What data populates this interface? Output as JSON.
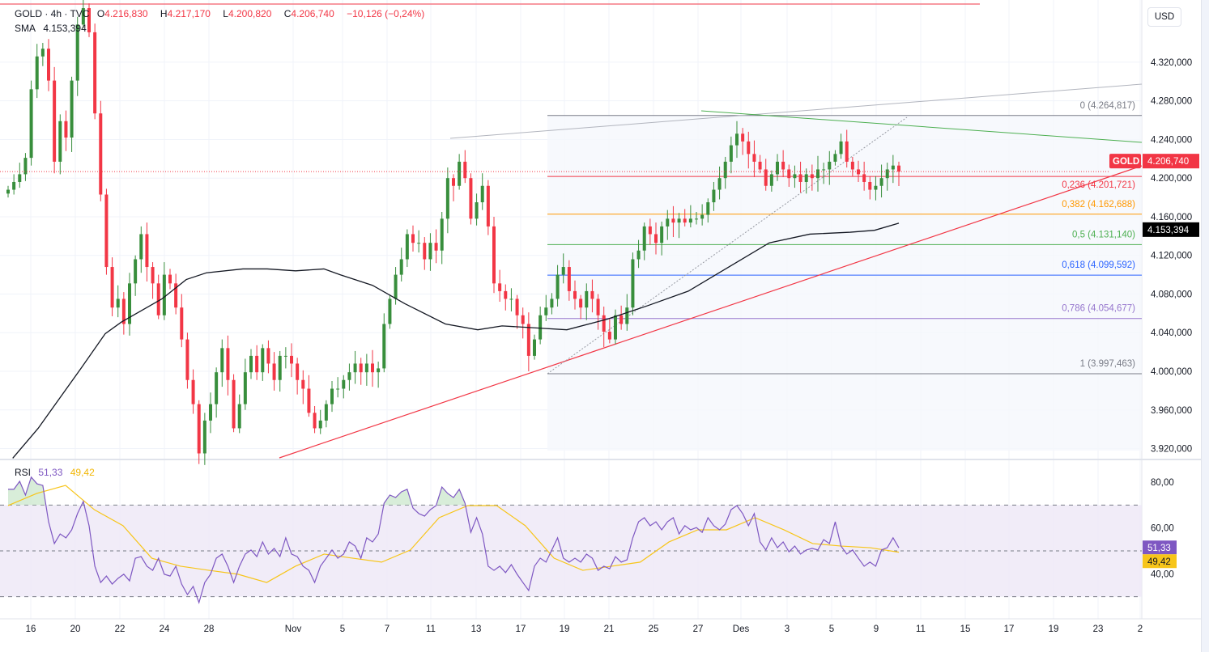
{
  "header": {
    "symbol": "GOLD · 4h · TVC",
    "open_label": "O",
    "open": "4.216,830",
    "high_label": "H",
    "high": "4.217,170",
    "low_label": "L",
    "low": "4.200,820",
    "close_label": "C",
    "close": "4.206,740",
    "change": "−10,126 (−0,24%)",
    "sma_label": "SMA",
    "sma_value": "4.153,394",
    "currency": "USD"
  },
  "colors": {
    "up": "#388e3c",
    "down": "#f23645",
    "sma": "#131722",
    "rsi": "#7e57c2",
    "rsi_ma": "#f7c51a",
    "grid": "#f0f3fa"
  },
  "chart_data": [
    {
      "type": "candlestick",
      "title": "GOLD · 4h · TVC",
      "ylim": [
        3900,
        4380
      ],
      "y_ticks": [
        {
          "value": 4320,
          "label": "4.320,000"
        },
        {
          "value": 4280,
          "label": "4.280,000"
        },
        {
          "value": 4240,
          "label": "4.240,000"
        },
        {
          "value": 4200,
          "label": "4.200,000"
        },
        {
          "value": 4160,
          "label": "4.160,000"
        },
        {
          "value": 4120,
          "label": "4.120,000"
        },
        {
          "value": 4080,
          "label": "4.080,000"
        },
        {
          "value": 4040,
          "label": "4.040,000"
        },
        {
          "value": 4000,
          "label": "4.000,000"
        },
        {
          "value": 3960,
          "label": "3.960,000"
        },
        {
          "value": 3920,
          "label": "3.920,000"
        }
      ],
      "x_ticks": [
        "16",
        "20",
        "22",
        "24",
        "28",
        "Nov",
        "5",
        "7",
        "11",
        "13",
        "17",
        "19",
        "21",
        "25",
        "27",
        "Des",
        "3",
        "5",
        "9",
        "11",
        "15",
        "17",
        "19",
        "23",
        "2"
      ],
      "closes": [
        4188,
        4196,
        4204,
        4221,
        4292,
        4326,
        4334,
        4301,
        4217,
        4259,
        4242,
        4301,
        4359,
        4376,
        4351,
        4267,
        4183,
        4108,
        4066,
        4075,
        4049,
        4091,
        4116,
        4142,
        4108,
        4091,
        4058,
        4100,
        4091,
        4066,
        4033,
        3991,
        3966,
        3915,
        3949,
        3966,
        3999,
        4024,
        3991,
        3941,
        3966,
        3999,
        4016,
        3999,
        4024,
        4008,
        3991,
        4016,
        4016,
        4008,
        3991,
        3982,
        3957,
        3941,
        3949,
        3966,
        3982,
        3982,
        3991,
        3999,
        4008,
        3999,
        4008,
        3999,
        4003,
        4049,
        4075,
        4100,
        4116,
        4142,
        4133,
        4133,
        4116,
        4133,
        4125,
        4158,
        4200,
        4192,
        4217,
        4200,
        4158,
        4175,
        4192,
        4150,
        4091,
        4083,
        4075,
        4075,
        4058,
        4049,
        4016,
        4033,
        4058,
        4066,
        4075,
        4100,
        4108,
        4083,
        4075,
        4066,
        4083,
        4075,
        4058,
        4041,
        4033,
        4058,
        4049,
        4066,
        4116,
        4125,
        4150,
        4142,
        4133,
        4150,
        4158,
        4154,
        4158,
        4154,
        4158,
        4158,
        4162,
        4175,
        4188,
        4200,
        4217,
        4234,
        4246,
        4238,
        4225,
        4217,
        4209,
        4192,
        4204,
        4217,
        4209,
        4200,
        4204,
        4196,
        4204,
        4200,
        4209,
        4209,
        4217,
        4225,
        4238,
        4217,
        4209,
        4204,
        4196,
        4188,
        4192,
        4200,
        4209,
        4213,
        4206.74
      ],
      "sma": {
        "name": "SMA",
        "points": [
          [
            0.8,
            3910
          ],
          [
            5.2,
            3941
          ],
          [
            12.6,
            4003
          ],
          [
            16.8,
            4039
          ],
          [
            19.6,
            4051
          ],
          [
            26.6,
            4075
          ],
          [
            30.8,
            4095
          ],
          [
            34.3,
            4102
          ],
          [
            40.6,
            4106
          ],
          [
            44.8,
            4106
          ],
          [
            49.7,
            4104
          ],
          [
            54.6,
            4106
          ],
          [
            57.4,
            4100
          ],
          [
            63,
            4089
          ],
          [
            68.6,
            4070
          ],
          [
            75.6,
            4049
          ],
          [
            81.2,
            4043
          ],
          [
            85.4,
            4047
          ],
          [
            91,
            4045
          ],
          [
            96.6,
            4043
          ],
          [
            103.6,
            4054
          ],
          [
            110.6,
            4068
          ],
          [
            117.6,
            4083
          ],
          [
            124.6,
            4108
          ],
          [
            131.6,
            4133
          ],
          [
            138.6,
            4142
          ],
          [
            145.6,
            4144
          ],
          [
            149.8,
            4146
          ],
          [
            154,
            4153.394
          ]
        ]
      },
      "last_price": {
        "label": "GOLD",
        "value": 4206.74,
        "text": "4.206,740"
      },
      "sma_last": {
        "value": 4153.394,
        "text": "4.153,394"
      },
      "fibonacci": [
        {
          "ratio": 0,
          "value": 4264.817,
          "label": "0 (4.264,817)",
          "color": "#787b86"
        },
        {
          "ratio": 0.236,
          "value": 4201.721,
          "label": "0,236 (4.201,721)",
          "color": "#f23645"
        },
        {
          "ratio": 0.382,
          "value": 4162.688,
          "label": "0,382 (4.162,688)",
          "color": "#ff9800"
        },
        {
          "ratio": 0.5,
          "value": 4131.14,
          "label": "0,5 (4.131,140)",
          "color": "#4caf50"
        },
        {
          "ratio": 0.618,
          "value": 4099.592,
          "label": "0,618 (4.099,592)",
          "color": "#2962ff"
        },
        {
          "ratio": 0.786,
          "value": 4054.677,
          "label": "0,786 (4.054,677)",
          "color": "#9575cd"
        },
        {
          "ratio": 1,
          "value": 3997.463,
          "label": "1 (3.997,463)",
          "color": "#787b86"
        }
      ]
    },
    {
      "type": "line",
      "title": "RSI",
      "ylim": [
        20,
        90
      ],
      "bands": {
        "upper": 70,
        "middle": 50,
        "lower": 30
      },
      "y_ticks": [
        {
          "value": 80,
          "label": "80,00"
        },
        {
          "value": 60,
          "label": "60,00"
        },
        {
          "value": 40,
          "label": "40,00"
        }
      ],
      "series": [
        {
          "name": "RSI",
          "last": "51,33",
          "values": [
            76.9,
            76.9,
            80.4,
            74.4,
            82.2,
            79.3,
            78.6,
            62.7,
            53.2,
            57.4,
            55.7,
            59.2,
            66.3,
            71.6,
            61,
            43.3,
            36.2,
            39,
            35.5,
            38,
            39.8,
            36.9,
            46.8,
            47.5,
            43.3,
            41.5,
            46.8,
            39.8,
            39,
            43.3,
            35.5,
            30.9,
            34.5,
            27.4,
            36.2,
            39.8,
            46.8,
            48.6,
            43.3,
            36.2,
            43.3,
            48.6,
            50.4,
            47.5,
            53.9,
            48.6,
            51.1,
            47.5,
            55.7,
            48.6,
            47.5,
            43.3,
            41.5,
            36.2,
            43.3,
            46.8,
            50.4,
            46.8,
            48.6,
            53.9,
            52.1,
            46.8,
            55.7,
            53.9,
            57.4,
            70.8,
            74.4,
            73.3,
            75.8,
            76.9,
            68.7,
            66.3,
            65.2,
            68,
            69.8,
            77.9,
            75.1,
            73.3,
            76.9,
            70.8,
            58.1,
            64.5,
            57.4,
            43.3,
            41.5,
            43.3,
            40.5,
            44,
            39.8,
            36.2,
            32.7,
            43.3,
            46.8,
            45.1,
            50.4,
            55.7,
            46.8,
            45.1,
            46.8,
            45.1,
            48.6,
            46.8,
            41.5,
            43.3,
            42.2,
            47.5,
            45.1,
            46.1,
            55.7,
            62.7,
            64.5,
            61,
            62.7,
            59.2,
            62.7,
            64.5,
            57.4,
            61,
            59.2,
            60.2,
            58.1,
            64.5,
            61,
            59.2,
            61.7,
            68,
            69.8,
            66.3,
            61,
            66.3,
            53.9,
            50.4,
            55.7,
            51.4,
            53.9,
            49.6,
            52.1,
            48.6,
            50.4,
            51.1,
            50.4,
            54.9,
            53.2,
            62.7,
            52.1,
            48.6,
            50.4,
            46.8,
            43.3,
            45.1,
            43.3,
            50.4,
            51.4,
            55.7,
            51.33
          ]
        },
        {
          "name": "RSI MA",
          "last": "49,42",
          "values": [
            69.8,
            75.1,
            78.6,
            68,
            61,
            46.8,
            43.3,
            41.5,
            39.8,
            36.2,
            43.3,
            48.6,
            46.8,
            45.1,
            50.4,
            64.5,
            69.8,
            69.8,
            61,
            46.8,
            41.5,
            43.3,
            45.1,
            53.9,
            59.2,
            59.2,
            64.5,
            59.2,
            53.2,
            52.1,
            51.4,
            49.42
          ]
        }
      ]
    }
  ]
}
